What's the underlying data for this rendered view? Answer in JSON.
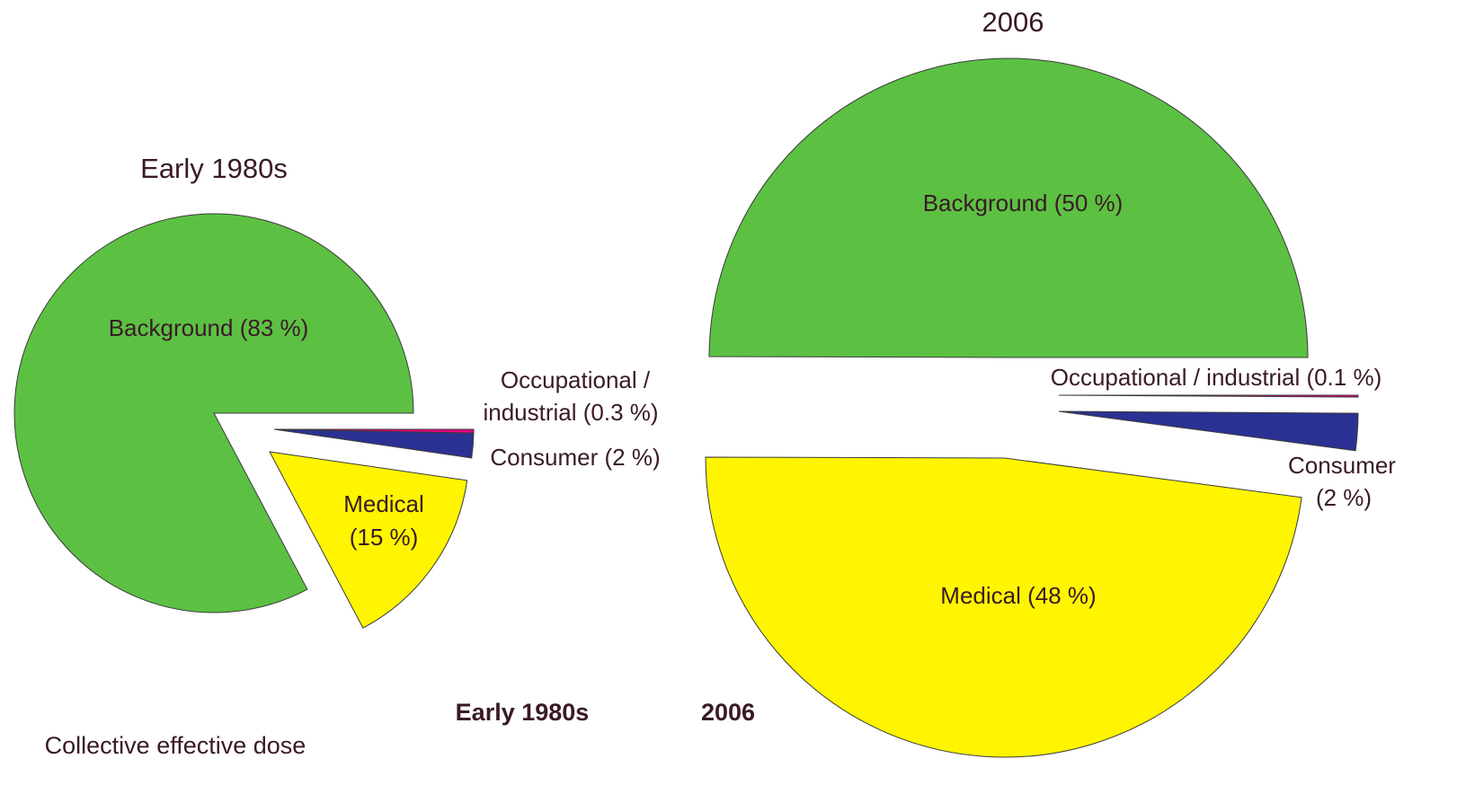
{
  "chart_data": [
    {
      "type": "pie",
      "title": "Early 1980s",
      "categories": [
        "Background",
        "Medical",
        "Consumer",
        "Occupational / industrial"
      ],
      "labels": [
        [
          "Background (83 %)"
        ],
        [
          "Medical",
          "(15 %)"
        ],
        [
          "Consumer (2 %)"
        ],
        [
          "Occupational /",
          "industrial (0.3 %)"
        ]
      ],
      "values": [
        83,
        15,
        2,
        0.3
      ],
      "colors": [
        "#5cc143",
        "#fff500",
        "#2b3192",
        "#e6007e"
      ]
    },
    {
      "type": "pie",
      "title": "2006",
      "categories": [
        "Background",
        "Medical",
        "Consumer",
        "Occupational / industrial"
      ],
      "labels": [
        [
          "Background (50 %)"
        ],
        [
          "Medical (48 %)"
        ],
        [
          "Consumer",
          "(2 %)"
        ],
        [
          "Occupational / industrial (0.1 %)"
        ]
      ],
      "values": [
        50,
        48,
        2,
        0.1
      ],
      "colors": [
        "#5cc143",
        "#fff500",
        "#2b3192",
        "#e6007e"
      ]
    }
  ],
  "footer": {
    "legend": [
      "Early 1980s",
      "2006"
    ],
    "caption": "Collective effective dose"
  }
}
